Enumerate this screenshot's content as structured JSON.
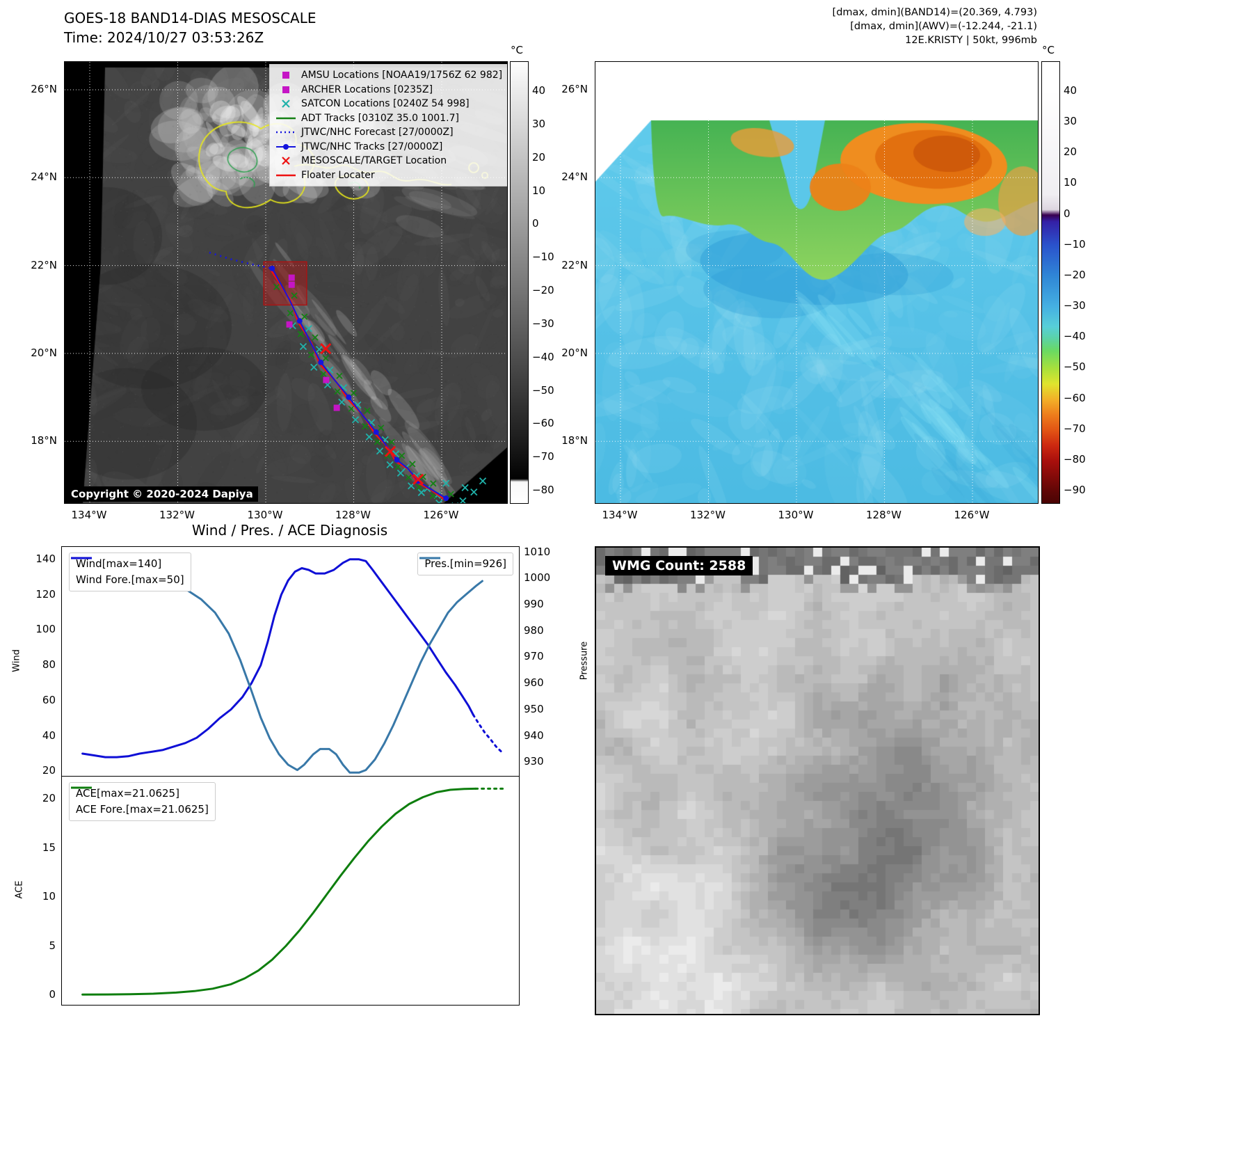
{
  "band14": {
    "title": "GOES-18 BAND14-DIAS MESOSCALE",
    "time_line": "Time: 2024/10/27 03:53:26Z",
    "copyright": "Copyright © 2020-2024 Dapiya",
    "lat_ticks": [
      "26°N",
      "24°N",
      "22°N",
      "20°N",
      "18°N"
    ],
    "lon_ticks": [
      "134°W",
      "132°W",
      "130°W",
      "128°W",
      "126°W"
    ],
    "legend_items": [
      {
        "label": "AMSU Locations [NOAA19/1756Z 62 982]",
        "marker": "square",
        "color": "#c515c5"
      },
      {
        "label": "ARCHER Locations [0235Z]",
        "marker": "square",
        "color": "#c515c5"
      },
      {
        "label": "SATCON Locations [0240Z 54 998]",
        "marker": "x",
        "color": "#20b2aa"
      },
      {
        "label": "ADT Tracks [0310Z 35.0 1001.7]",
        "marker": "line",
        "color": "#158015"
      },
      {
        "label": "JTWC/NHC Forecast [27/0000Z]",
        "marker": "dotted",
        "color": "#1515dd"
      },
      {
        "label": "JTWC/NHC Tracks [27/0000Z]",
        "marker": "line-dot",
        "color": "#1515dd"
      },
      {
        "label": "MESOSCALE/TARGET Location",
        "marker": "x",
        "color": "#ee1111"
      },
      {
        "label": "Floater Locater",
        "marker": "line",
        "color": "#ee1111"
      }
    ],
    "colorbar": {
      "unit": "°C",
      "ticks": [
        "40",
        "30",
        "20",
        "10",
        "0",
        "−10",
        "−20",
        "−30",
        "−40",
        "−50",
        "−60",
        "−70",
        "−80"
      ],
      "stops": [
        [
          0,
          "#ffffff"
        ],
        [
          0.04,
          "#f2f2f2"
        ],
        [
          0.5,
          "#7a7a7a"
        ],
        [
          0.86,
          "#1c1c1c"
        ],
        [
          0.945,
          "#020202"
        ],
        [
          0.952,
          "#f8f8f8"
        ],
        [
          1,
          "#ffffff"
        ]
      ]
    },
    "track": {
      "forecast": [
        [
          0.327,
          0.432
        ],
        [
          0.375,
          0.447
        ],
        [
          0.42,
          0.458
        ],
        [
          0.469,
          0.468
        ]
      ],
      "best_track": [
        [
          0.469,
          0.468
        ],
        [
          0.508,
          0.539
        ],
        [
          0.531,
          0.587
        ],
        [
          0.555,
          0.634
        ],
        [
          0.579,
          0.681
        ],
        [
          0.61,
          0.721
        ],
        [
          0.642,
          0.76
        ],
        [
          0.673,
          0.8
        ],
        [
          0.704,
          0.839
        ],
        [
          0.728,
          0.871
        ],
        [
          0.751,
          0.902
        ],
        [
          0.775,
          0.921
        ],
        [
          0.799,
          0.95
        ],
        [
          0.822,
          0.965
        ],
        [
          0.862,
          0.989
        ]
      ],
      "target_box": [
        0.45,
        0.453,
        0.097,
        0.098
      ],
      "amsu_points": [
        [
          0.513,
          0.489
        ],
        [
          0.513,
          0.505
        ],
        [
          0.508,
          0.595
        ],
        [
          0.591,
          0.721
        ],
        [
          0.615,
          0.784
        ]
      ],
      "target_x": [
        [
          0.59,
          0.65
        ],
        [
          0.736,
          0.883
        ],
        [
          0.799,
          0.946
        ]
      ],
      "satcon_extra": [
        [
          0.905,
          0.965
        ],
        [
          0.925,
          0.975
        ],
        [
          0.945,
          0.95
        ],
        [
          0.9,
          0.995
        ],
        [
          0.862,
          0.955
        ]
      ],
      "colors": {
        "track_blue": "#1515dd",
        "floater_red": "#ee1111",
        "adt_green": "#158015",
        "satcon_cyan": "#20b2aa",
        "amsu_magenta": "#c515c5",
        "box_stroke": "#a81515",
        "box_fill": "rgba(170,25,25,0.5)"
      }
    }
  },
  "awv": {
    "header": [
      "[dmax, dmin](BAND14)=(20.369, 4.793)",
      "[dmax, dmin](AWV)=(-12.244, -21.1)",
      "12E.KRISTY | 50kt, 996mb"
    ],
    "lat_ticks": [
      "26°N",
      "24°N",
      "22°N",
      "20°N",
      "18°N"
    ],
    "lon_ticks": [
      "134°W",
      "132°W",
      "130°W",
      "128°W",
      "126°W"
    ],
    "colorbar": {
      "unit": "°C",
      "ticks": [
        "40",
        "30",
        "20",
        "10",
        "0",
        "−10",
        "−20",
        "−30",
        "−40",
        "−50",
        "−60",
        "−70",
        "−80",
        "−90"
      ],
      "stops": [
        [
          0,
          "#ffffff"
        ],
        [
          0.065,
          "#ffffff"
        ],
        [
          0.3,
          "#f0eef2"
        ],
        [
          0.335,
          "#ddd6e0"
        ],
        [
          0.347,
          "#38004f"
        ],
        [
          0.362,
          "#3420a6"
        ],
        [
          0.415,
          "#2a52cc"
        ],
        [
          0.485,
          "#2f86d6"
        ],
        [
          0.555,
          "#45b0e2"
        ],
        [
          0.6,
          "#57cfd8"
        ],
        [
          0.625,
          "#5ad2aa"
        ],
        [
          0.655,
          "#6ada62"
        ],
        [
          0.695,
          "#a8e03c"
        ],
        [
          0.73,
          "#e0e42e"
        ],
        [
          0.765,
          "#f2b028"
        ],
        [
          0.8,
          "#ee7d1c"
        ],
        [
          0.835,
          "#e25414"
        ],
        [
          0.87,
          "#cc2810"
        ],
        [
          0.905,
          "#a80f0c"
        ],
        [
          0.975,
          "#5e0606"
        ],
        [
          1,
          "#4a0404"
        ]
      ]
    }
  },
  "diagnosis_title": "Wind / Pres. / ACE Diagnosis",
  "wmg": {
    "count_label": "WMG Count: 2588"
  },
  "chart_data": [
    {
      "type": "line",
      "id": "wind_pressure",
      "title": "Wind / Pres. / ACE Diagnosis",
      "ylabel_left": "Wind",
      "ylabel_right": "Pressure",
      "yticks_left": [
        20,
        40,
        60,
        80,
        100,
        120,
        140
      ],
      "yticks_right": [
        930,
        940,
        950,
        960,
        970,
        980,
        990,
        1000,
        1010
      ],
      "ylim_left": [
        17,
        147
      ],
      "ylim_right": [
        924.5,
        1012
      ],
      "xlim": [
        0,
        1
      ],
      "grid": false,
      "legend_left_pos": "top-left",
      "legend_right_pos": "top-right",
      "series": [
        {
          "name": "Wind[max=140]",
          "axis": "left",
          "style": "solid",
          "color": "#0f0fd6",
          "points": [
            [
              0.045,
              30
            ],
            [
              0.07,
              29
            ],
            [
              0.095,
              28
            ],
            [
              0.12,
              28
            ],
            [
              0.145,
              28.5
            ],
            [
              0.17,
              30
            ],
            [
              0.195,
              31
            ],
            [
              0.22,
              32
            ],
            [
              0.245,
              34
            ],
            [
              0.27,
              36
            ],
            [
              0.295,
              39
            ],
            [
              0.32,
              44
            ],
            [
              0.345,
              50
            ],
            [
              0.37,
              55
            ],
            [
              0.395,
              62
            ],
            [
              0.415,
              70
            ],
            [
              0.435,
              80
            ],
            [
              0.45,
              93
            ],
            [
              0.465,
              108
            ],
            [
              0.48,
              120
            ],
            [
              0.495,
              128
            ],
            [
              0.51,
              133
            ],
            [
              0.525,
              135
            ],
            [
              0.54,
              134
            ],
            [
              0.555,
              132
            ],
            [
              0.575,
              132
            ],
            [
              0.595,
              134
            ],
            [
              0.615,
              138
            ],
            [
              0.63,
              140
            ],
            [
              0.65,
              140
            ],
            [
              0.665,
              139
            ],
            [
              0.68,
              134
            ],
            [
              0.7,
              127
            ],
            [
              0.72,
              120
            ],
            [
              0.74,
              113
            ],
            [
              0.76,
              106
            ],
            [
              0.78,
              99
            ],
            [
              0.8,
              92
            ],
            [
              0.82,
              84
            ],
            [
              0.84,
              76
            ],
            [
              0.86,
              69
            ],
            [
              0.875,
              63
            ],
            [
              0.89,
              57
            ],
            [
              0.9,
              52
            ]
          ]
        },
        {
          "name": "Wind Fore.[max=50]",
          "axis": "left",
          "style": "dotted",
          "color": "#0f0fd6",
          "points": [
            [
              0.9,
              52
            ],
            [
              0.912,
              47
            ],
            [
              0.925,
              42
            ],
            [
              0.938,
              38
            ],
            [
              0.95,
              34
            ],
            [
              0.962,
              31
            ]
          ]
        },
        {
          "name": "Pres.[min=926]",
          "axis": "right",
          "style": "solid",
          "color": "#3878a8",
          "points": [
            [
              0.045,
              1006
            ],
            [
              0.09,
              1005
            ],
            [
              0.135,
              1004
            ],
            [
              0.18,
              1002
            ],
            [
              0.225,
              1000
            ],
            [
              0.27,
              996
            ],
            [
              0.305,
              992
            ],
            [
              0.335,
              987
            ],
            [
              0.365,
              979
            ],
            [
              0.39,
              969
            ],
            [
              0.415,
              957
            ],
            [
              0.435,
              947
            ],
            [
              0.455,
              939
            ],
            [
              0.475,
              933
            ],
            [
              0.495,
              929
            ],
            [
              0.515,
              927
            ],
            [
              0.53,
              929
            ],
            [
              0.55,
              933
            ],
            [
              0.565,
              935
            ],
            [
              0.585,
              935
            ],
            [
              0.6,
              933
            ],
            [
              0.615,
              929
            ],
            [
              0.63,
              926
            ],
            [
              0.65,
              926
            ],
            [
              0.665,
              927
            ],
            [
              0.685,
              931
            ],
            [
              0.705,
              937
            ],
            [
              0.725,
              944
            ],
            [
              0.745,
              952
            ],
            [
              0.765,
              960
            ],
            [
              0.785,
              968
            ],
            [
              0.805,
              975
            ],
            [
              0.825,
              981
            ],
            [
              0.845,
              987
            ],
            [
              0.865,
              991
            ],
            [
              0.885,
              994
            ],
            [
              0.905,
              997
            ],
            [
              0.92,
              999
            ]
          ]
        }
      ]
    },
    {
      "type": "line",
      "id": "ace",
      "ylabel": "ACE",
      "yticks": [
        0,
        5,
        10,
        15,
        20
      ],
      "ylim": [
        -1,
        22.3
      ],
      "xlim": [
        0,
        1
      ],
      "grid": false,
      "series": [
        {
          "name": "ACE[max=21.0625]",
          "style": "solid",
          "color": "#0e7e0e",
          "points": [
            [
              0.045,
              0.05
            ],
            [
              0.1,
              0.06
            ],
            [
              0.15,
              0.09
            ],
            [
              0.2,
              0.14
            ],
            [
              0.25,
              0.25
            ],
            [
              0.29,
              0.4
            ],
            [
              0.33,
              0.65
            ],
            [
              0.37,
              1.1
            ],
            [
              0.4,
              1.7
            ],
            [
              0.43,
              2.5
            ],
            [
              0.46,
              3.6
            ],
            [
              0.49,
              5.0
            ],
            [
              0.52,
              6.6
            ],
            [
              0.55,
              8.4
            ],
            [
              0.58,
              10.3
            ],
            [
              0.61,
              12.2
            ],
            [
              0.64,
              14.0
            ],
            [
              0.67,
              15.7
            ],
            [
              0.7,
              17.2
            ],
            [
              0.73,
              18.5
            ],
            [
              0.76,
              19.5
            ],
            [
              0.79,
              20.2
            ],
            [
              0.82,
              20.7
            ],
            [
              0.85,
              20.95
            ],
            [
              0.88,
              21.04
            ],
            [
              0.905,
              21.0625
            ]
          ]
        },
        {
          "name": "ACE Fore.[max=21.0625]",
          "style": "dotted",
          "color": "#0e7e0e",
          "points": [
            [
              0.905,
              21.0625
            ],
            [
              0.925,
              21.0625
            ],
            [
              0.945,
              21.0625
            ],
            [
              0.965,
              21.0625
            ]
          ]
        }
      ]
    }
  ]
}
